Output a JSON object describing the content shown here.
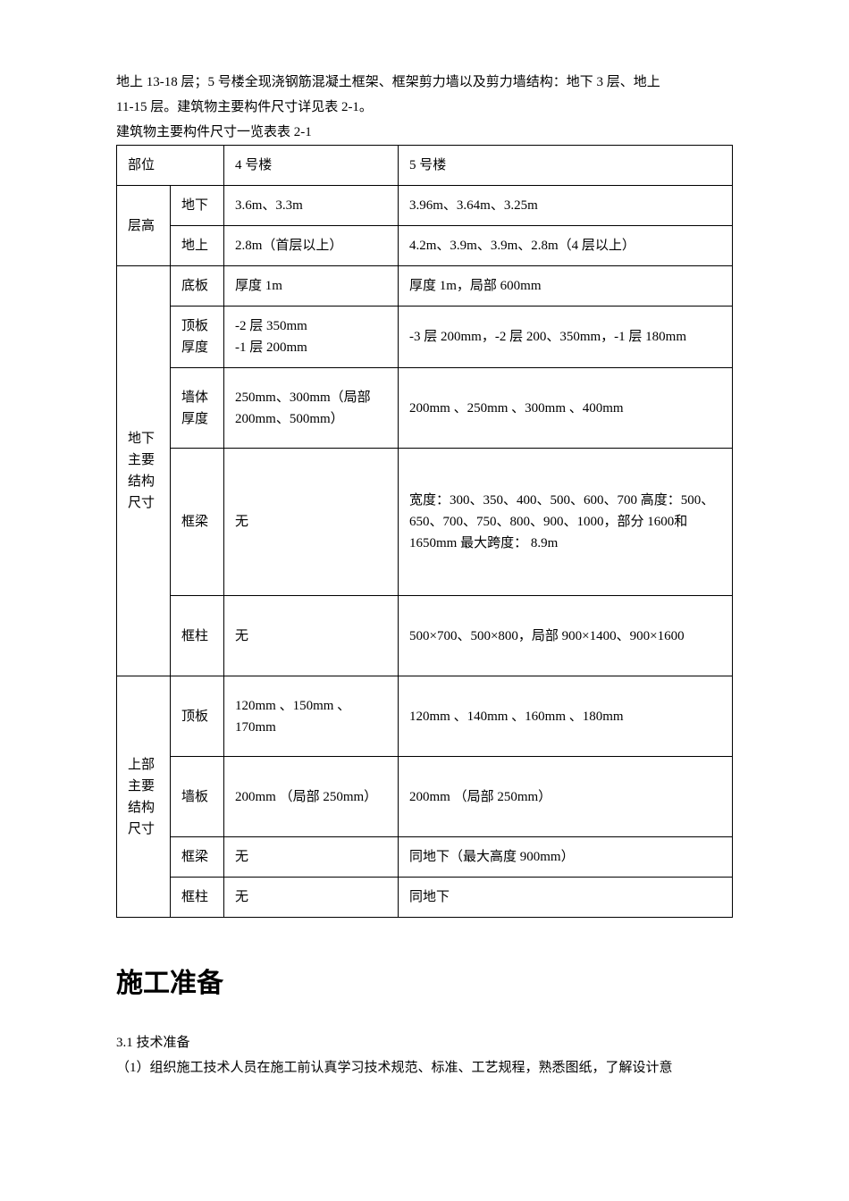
{
  "intro": {
    "line1": "地上 13-18 层；5 号楼全现浇钢筋混凝土框架、框架剪力墙以及剪力墙结构：地下 3 层、地上",
    "line2": "11-15 层。建筑物主要构件尺寸详见表 2-1。"
  },
  "tableCaption": "建筑物主要构件尺寸一览表表 2-1",
  "table": {
    "headers": {
      "part": "部位",
      "building4": "4 号楼",
      "building5": "5 号楼"
    },
    "rows": {
      "floorHeight": {
        "groupLabel": "层高",
        "underground": {
          "label": "地下",
          "b4": "3.6m、3.3m",
          "b5": "3.96m、3.64m、3.25m"
        },
        "aboveground": {
          "label": "地上",
          "b4": "2.8m（首层以上）",
          "b5": "4.2m、3.9m、3.9m、2.8m（4 层以上）"
        }
      },
      "undergroundStructure": {
        "groupLabel": "地下主要结构尺寸",
        "basePlate": {
          "label": "底板",
          "b4": "厚度 1m",
          "b5": "厚度 1m，局部 600mm"
        },
        "topPlate": {
          "label": "顶板厚度",
          "b4": "-2 层 350mm\n-1 层 200mm",
          "b5": "-3 层 200mm，-2 层 200、350mm，-1 层 180mm"
        },
        "wall": {
          "label": "墙体厚度",
          "b4": "250mm、300mm（局部 200mm、500mm）",
          "b5": "200mm 、250mm 、300mm 、400mm"
        },
        "beam": {
          "label": "框梁",
          "b4": "无",
          "b5": "宽度：300、350、400、500、600、700 高度：500、650、700、750、800、900、1000，部分 1600和 1650mm 最大跨度： 8.9m"
        },
        "column": {
          "label": "框柱",
          "b4": "无",
          "b5": "500×700、500×800，局部 900×1400、900×1600"
        }
      },
      "upperStructure": {
        "groupLabel": "上部主要结构尺寸",
        "topPlate": {
          "label": "顶板",
          "b4": "120mm 、150mm 、170mm",
          "b5": "120mm 、140mm 、160mm 、180mm"
        },
        "wallPlate": {
          "label": "墙板",
          "b4": "200mm （局部 250mm）",
          "b5": "200mm （局部 250mm）"
        },
        "beam": {
          "label": "框梁",
          "b4": "无",
          "b5": "同地下（最大高度 900mm）"
        },
        "column": {
          "label": "框柱",
          "b4": "无",
          "b5": "同地下"
        }
      }
    }
  },
  "section": {
    "heading": "施工准备",
    "subheading": "3.1 技术准备",
    "paragraph": "（1）组织施工技术人员在施工前认真学习技术规范、标准、工艺规程，熟悉图纸，了解设计意"
  },
  "styling": {
    "bodyFont": "SimSun",
    "fontSize": 15,
    "headingFontSize": 30,
    "textColor": "#000000",
    "backgroundColor": "#ffffff",
    "borderColor": "#000000"
  }
}
